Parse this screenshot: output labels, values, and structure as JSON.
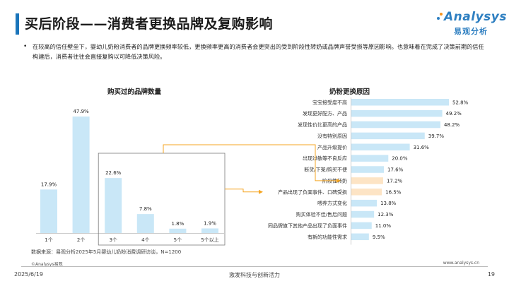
{
  "header": {
    "title": "买后阶段——消费者更换品牌及复购影响",
    "logo_word": "nalysys",
    "logo_initial": "A",
    "logo_cn": "易观分析"
  },
  "intro": {
    "bullet": "•",
    "text": "在较高的信任壁垒下，婴幼儿奶粉消费者的品牌更换频率较低，更换频率更高的消费者会更突出的受到阶段性转奶或品牌声誉受损等原因影响。也意味着在完成了决策前期的信任构建后，消费者往往会直接复购以可降低决策风险。"
  },
  "colors": {
    "bar": "#c9e7f7",
    "bar_highlight": "#fde4c5",
    "arrow": "#f5a623",
    "box": "#7a7a7a",
    "axis": "#cccccc"
  },
  "chart_data": [
    {
      "type": "bar",
      "title": "购买过的品牌数量",
      "categories": [
        "1个",
        "2个",
        "3个",
        "4个",
        "5个",
        "5个以上"
      ],
      "values": [
        17.9,
        47.9,
        22.6,
        7.8,
        1.8,
        1.9
      ],
      "value_labels": [
        "17.9%",
        "47.9%",
        "22.6%",
        "7.8%",
        "1.8%",
        "1.9%"
      ],
      "unit": "%",
      "orientation": "vertical",
      "highlight_box": [
        "3个",
        "4个",
        "5个",
        "5个以上"
      ]
    },
    {
      "type": "bar",
      "title": "奶粉更换原因",
      "orientation": "horizontal",
      "categories": [
        "宝宝接受度不高",
        "发现更好配方、产品",
        "发现性价比更高的产品",
        "没有特别原因",
        "产品升级提价",
        "出现过敏等不良反应",
        "断货/下架/购买不便",
        "阶段性转奶",
        "产品出现了负面事件、口碑受损",
        "喂养方式变化",
        "购买体验不佳/售后问题",
        "同品牌旗下其他产品出现了负面事件",
        "有新的功能性需求"
      ],
      "values": [
        52.8,
        49.2,
        48.2,
        39.7,
        31.6,
        20.0,
        17.6,
        17.2,
        16.5,
        13.8,
        12.3,
        11.0,
        9.5
      ],
      "value_labels": [
        "52.8%",
        "49.2%",
        "48.2%",
        "39.7%",
        "31.6%",
        "20.0%",
        "17.6%",
        "17.2%",
        "16.5%",
        "13.8%",
        "12.3%",
        "11.0%",
        "9.5%"
      ],
      "highlighted": [
        "阶段性转奶",
        "产品出现了负面事件、口碑受损"
      ],
      "unit": "%"
    }
  ],
  "footer": {
    "source": "数据来源：易观分析2025年5月婴幼儿奶粉消费调研访谈，N=1200",
    "copyright": "©Analysys易观",
    "website": "www.analysys.cn",
    "date": "2025/6/19",
    "slogan": "激发科技与创新活力",
    "page": "19"
  }
}
